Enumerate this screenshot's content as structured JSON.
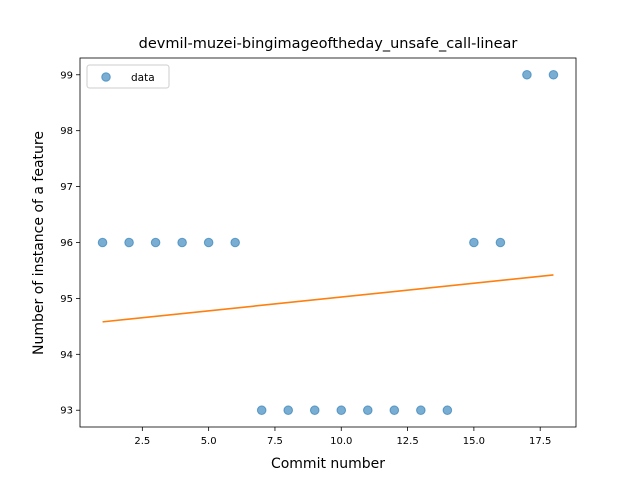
{
  "chart_data": {
    "type": "scatter",
    "title": "devmil-muzei-bingimageoftheday_unsafe_call-linear",
    "xlabel": "Commit number",
    "ylabel": "Number of instance of a feature",
    "xlim": [
      0.15,
      18.85
    ],
    "ylim": [
      92.7,
      99.3
    ],
    "xticks": [
      2.5,
      5.0,
      7.5,
      10.0,
      12.5,
      15.0,
      17.5
    ],
    "xtick_labels": [
      "2.5",
      "5.0",
      "7.5",
      "10.0",
      "12.5",
      "15.0",
      "17.5"
    ],
    "yticks": [
      93,
      94,
      95,
      96,
      97,
      98,
      99
    ],
    "ytick_labels": [
      "93",
      "94",
      "95",
      "96",
      "97",
      "98",
      "99"
    ],
    "grid": false,
    "legend_position": "upper-left",
    "series": [
      {
        "name": "data",
        "kind": "scatter",
        "color": "#1f77b4",
        "x": [
          1,
          2,
          3,
          4,
          5,
          6,
          7,
          8,
          9,
          10,
          11,
          12,
          13,
          14,
          15,
          16,
          17,
          18
        ],
        "y": [
          96,
          96,
          96,
          96,
          96,
          96,
          93,
          93,
          93,
          93,
          93,
          93,
          93,
          93,
          96,
          96,
          99,
          99
        ]
      },
      {
        "kind": "line",
        "color": "#ff7f0e",
        "x": [
          1,
          18
        ],
        "y": [
          94.58,
          95.42
        ]
      }
    ]
  }
}
